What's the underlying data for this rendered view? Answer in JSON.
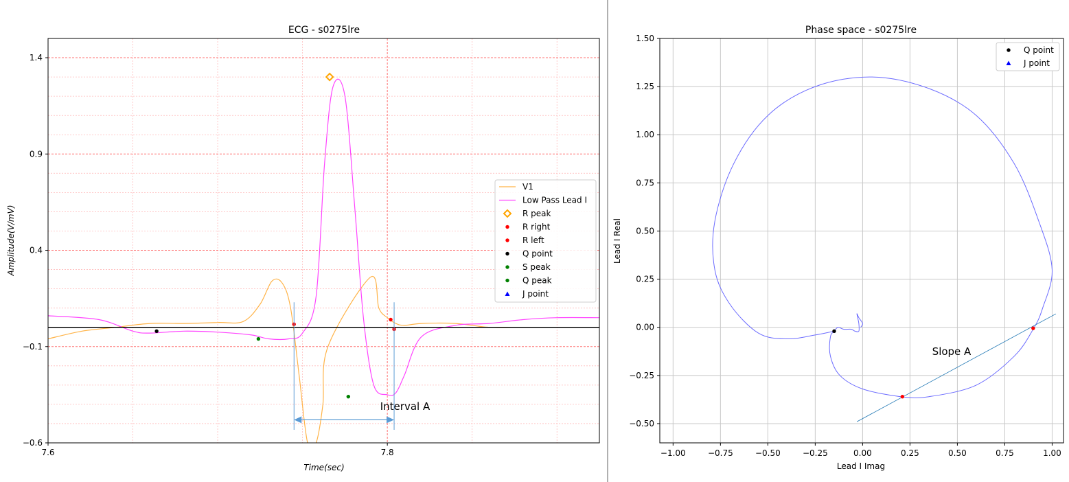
{
  "chart_data": [
    {
      "type": "line",
      "title": "ECG - s0275lre",
      "xlabel": "Time(sec)",
      "ylabel": "Amplitude(V/mV)",
      "xlim": [
        7.6,
        7.925
      ],
      "ylim": [
        -0.6,
        1.5
      ],
      "x_ticks": [
        "7.6",
        "7.8"
      ],
      "y_ticks": [
        "1.4",
        "0.9",
        "0.4",
        "−0.1",
        "−0.6"
      ],
      "x_tick_values": [
        7.6,
        7.8
      ],
      "y_tick_values": [
        1.4,
        0.9,
        0.4,
        -0.1,
        -0.6
      ],
      "x_minor_grid": [
        7.65,
        7.7,
        7.75,
        7.85,
        7.9
      ],
      "y_minor_grid": [
        1.3,
        1.2,
        1.1,
        1.0,
        0.8,
        0.7,
        0.6,
        0.5,
        0.3,
        0.2,
        0.1,
        0.0,
        -0.2,
        -0.3,
        -0.4,
        -0.5
      ],
      "grid": "red dotted",
      "baseline": 0.0,
      "legend_position": "right",
      "series": [
        {
          "name": "V1",
          "color": "#ffb347",
          "x": [
            7.6,
            7.62,
            7.64,
            7.66,
            7.68,
            7.7,
            7.715,
            7.725,
            7.732,
            7.738,
            7.743,
            7.748,
            7.753,
            7.758,
            7.762,
            7.765,
            7.79,
            7.795,
            7.8,
            7.805,
            7.81,
            7.82,
            7.84,
            7.86,
            7.88,
            7.9,
            7.925
          ],
          "y": [
            -0.06,
            -0.02,
            0.0,
            0.02,
            0.02,
            0.025,
            0.03,
            0.12,
            0.24,
            0.23,
            0.1,
            -0.25,
            -0.6,
            -0.6,
            -0.4,
            -0.1,
            0.26,
            0.1,
            0.05,
            0.02,
            0.01,
            0.02,
            0.02,
            0.0,
            0.0,
            0.0,
            0.0
          ]
        },
        {
          "name": "Low Pass Lead I",
          "color": "#ff44ff",
          "x": [
            7.6,
            7.63,
            7.65,
            7.66,
            7.68,
            7.7,
            7.72,
            7.73,
            7.742,
            7.75,
            7.758,
            7.763,
            7.768,
            7.775,
            7.781,
            7.786,
            7.792,
            7.8,
            7.805,
            7.81,
            7.82,
            7.84,
            7.86,
            7.88,
            7.9,
            7.925
          ],
          "y": [
            0.06,
            0.04,
            -0.02,
            -0.03,
            -0.02,
            -0.025,
            -0.04,
            -0.06,
            -0.06,
            -0.03,
            0.16,
            0.85,
            1.25,
            1.2,
            0.6,
            0.04,
            -0.3,
            -0.35,
            -0.34,
            -0.25,
            -0.05,
            0.01,
            0.02,
            0.04,
            0.05,
            0.05
          ]
        }
      ],
      "markers": [
        {
          "name": "R peak",
          "color": "#ffa500",
          "shape": "diamond-open",
          "points": [
            [
              7.766,
              1.3
            ]
          ]
        },
        {
          "name": "R right",
          "color": "#ff0000",
          "shape": "dot",
          "points": [
            [
              7.802,
              0.04
            ],
            [
              7.804,
              -0.01
            ]
          ]
        },
        {
          "name": "R left",
          "color": "#ff0000",
          "shape": "dot",
          "points": [
            [
              7.745,
              0.016
            ]
          ]
        },
        {
          "name": "Q point",
          "color": "#000000",
          "shape": "dot",
          "points": [
            [
              7.664,
              -0.02
            ]
          ]
        },
        {
          "name": "S peak",
          "color": "#008000",
          "shape": "dot",
          "points": [
            [
              7.777,
              -0.36
            ]
          ]
        },
        {
          "name": "Q peak",
          "color": "#008000",
          "shape": "dot",
          "points": [
            [
              7.724,
              -0.06
            ]
          ]
        },
        {
          "name": "J point",
          "color": "#0000ff",
          "shape": "triangle",
          "points": []
        }
      ],
      "interval_annotation": {
        "label": "Interval A",
        "x_start": 7.745,
        "x_end": 7.804,
        "y": -0.48
      }
    },
    {
      "type": "line",
      "title": "Phase space - s0275lre",
      "xlabel": "Lead I Imag",
      "ylabel": "Lead I Real",
      "xlim": [
        -1.07,
        1.06
      ],
      "ylim": [
        -0.6,
        1.5
      ],
      "x_ticks": [
        "−1.00",
        "−0.75",
        "−0.50",
        "−0.25",
        "0.00",
        "0.25",
        "0.50",
        "0.75",
        "1.00"
      ],
      "y_ticks": [
        "1.50",
        "1.25",
        "1.00",
        "0.75",
        "0.50",
        "0.25",
        "0.00",
        "−0.25",
        "−0.50"
      ],
      "x_tick_values": [
        -1.0,
        -0.75,
        -0.5,
        -0.25,
        0.0,
        0.25,
        0.5,
        0.75,
        1.0
      ],
      "y_tick_values": [
        1.5,
        1.25,
        1.0,
        0.75,
        0.5,
        0.25,
        0.0,
        -0.25,
        -0.5
      ],
      "grid": true,
      "legend_position": "top-right",
      "series": [
        {
          "name": "",
          "color": "#6b6bff",
          "x": [
            -0.15,
            -0.25,
            -0.4,
            -0.55,
            -0.7,
            -0.78,
            -0.78,
            -0.68,
            -0.5,
            -0.25,
            0.05,
            0.35,
            0.6,
            0.8,
            0.93,
            1.0,
            0.95,
            0.9,
            0.8,
            0.6,
            0.35,
            0.2,
            0.0,
            -0.12,
            -0.17,
            -0.17,
            -0.15,
            -0.13,
            -0.1,
            -0.06,
            -0.04,
            -0.02,
            -0.02,
            -0.03,
            -0.02,
            0.0,
            -0.01
          ],
          "y": [
            -0.02,
            -0.04,
            -0.06,
            -0.03,
            0.12,
            0.3,
            0.55,
            0.85,
            1.1,
            1.25,
            1.3,
            1.24,
            1.1,
            0.85,
            0.55,
            0.3,
            0.1,
            -0.01,
            -0.15,
            -0.3,
            -0.36,
            -0.36,
            -0.32,
            -0.25,
            -0.15,
            -0.05,
            -0.02,
            0.0,
            -0.01,
            -0.01,
            -0.02,
            -0.02,
            0.02,
            0.07,
            0.05,
            0.02,
            0.0
          ]
        },
        {
          "name": "",
          "color": "#1f77b4",
          "x": [
            -0.03,
            1.02
          ],
          "y": [
            -0.49,
            0.07
          ]
        }
      ],
      "markers": [
        {
          "name": "Q point",
          "color": "#000000",
          "shape": "dot",
          "points": [
            [
              -0.15,
              -0.02
            ]
          ]
        },
        {
          "name": "J point",
          "color": "#0000ff",
          "shape": "triangle",
          "points": []
        },
        {
          "name": "",
          "color": "#ff0000",
          "shape": "dot",
          "points": [
            [
              0.21,
              -0.36
            ],
            [
              0.9,
              -0.005
            ]
          ]
        }
      ],
      "annotation": {
        "label": "Slope A",
        "x": 0.47,
        "y": -0.12
      }
    }
  ]
}
